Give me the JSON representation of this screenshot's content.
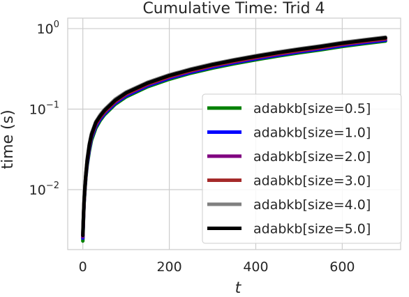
{
  "chart_data": {
    "type": "line",
    "title": "Cumulative Time: Trid 4",
    "xlabel": "t",
    "ylabel": "time (s)",
    "xscale": "linear",
    "yscale": "log",
    "xlim": [
      -35,
      735
    ],
    "ylim": [
      0.0018,
      1.35
    ],
    "xticks": [
      0,
      200,
      400,
      600
    ],
    "xtick_labels": [
      "0",
      "200",
      "400",
      "600"
    ],
    "yticks": [
      0.01,
      0.1,
      1
    ],
    "ytick_labels": [
      {
        "base": "10",
        "exp": "−2"
      },
      {
        "base": "10",
        "exp": "−1"
      },
      {
        "base": "10",
        "exp": "0"
      }
    ],
    "grid": true,
    "legend_position": "lower-right",
    "x": [
      0,
      1,
      2,
      3,
      5,
      7,
      10,
      15,
      20,
      30,
      40,
      50,
      75,
      100,
      150,
      200,
      250,
      300,
      350,
      400,
      450,
      500,
      550,
      600,
      650,
      700
    ],
    "series": [
      {
        "name": "adabkb[size=0.5]",
        "color": "#008000",
        "values": [
          0.0023,
          0.0035,
          0.005,
          0.0068,
          0.01,
          0.014,
          0.02,
          0.03,
          0.041,
          0.058,
          0.072,
          0.085,
          0.115,
          0.142,
          0.19,
          0.235,
          0.28,
          0.323,
          0.366,
          0.41,
          0.455,
          0.5,
          0.545,
          0.6,
          0.65,
          0.7
        ]
      },
      {
        "name": "adabkb[size=1.0]",
        "color": "#0000ff",
        "values": [
          0.0025,
          0.0037,
          0.0052,
          0.007,
          0.0105,
          0.0145,
          0.021,
          0.032,
          0.044,
          0.061,
          0.075,
          0.088,
          0.119,
          0.147,
          0.196,
          0.243,
          0.288,
          0.333,
          0.377,
          0.422,
          0.468,
          0.515,
          0.56,
          0.617,
          0.668,
          0.72
        ]
      },
      {
        "name": "adabkb[size=2.0]",
        "color": "#800080",
        "values": [
          0.0026,
          0.0038,
          0.0054,
          0.0072,
          0.0108,
          0.015,
          0.022,
          0.034,
          0.046,
          0.064,
          0.078,
          0.091,
          0.123,
          0.152,
          0.202,
          0.25,
          0.297,
          0.343,
          0.388,
          0.434,
          0.481,
          0.529,
          0.576,
          0.634,
          0.686,
          0.74
        ]
      },
      {
        "name": "adabkb[size=3.0]",
        "color": "#a52a2a",
        "values": [
          0.0027,
          0.0039,
          0.0055,
          0.0074,
          0.011,
          0.0152,
          0.023,
          0.035,
          0.047,
          0.066,
          0.08,
          0.093,
          0.126,
          0.155,
          0.206,
          0.255,
          0.302,
          0.349,
          0.395,
          0.442,
          0.49,
          0.538,
          0.586,
          0.645,
          0.698,
          0.752
        ]
      },
      {
        "name": "adabkb[size=4.0]",
        "color": "#808080",
        "values": [
          0.0028,
          0.0041,
          0.0057,
          0.0077,
          0.0114,
          0.0158,
          0.024,
          0.037,
          0.05,
          0.07,
          0.085,
          0.099,
          0.133,
          0.163,
          0.216,
          0.267,
          0.316,
          0.365,
          0.413,
          0.462,
          0.512,
          0.562,
          0.612,
          0.673,
          0.728,
          0.785
        ]
      },
      {
        "name": "adabkb[size=5.0]",
        "color": "#000000",
        "values": [
          0.0027,
          0.004,
          0.0056,
          0.0075,
          0.0112,
          0.0155,
          0.023,
          0.036,
          0.048,
          0.068,
          0.082,
          0.096,
          0.129,
          0.159,
          0.211,
          0.261,
          0.309,
          0.357,
          0.404,
          0.452,
          0.501,
          0.55,
          0.599,
          0.659,
          0.713,
          0.768
        ]
      }
    ]
  }
}
